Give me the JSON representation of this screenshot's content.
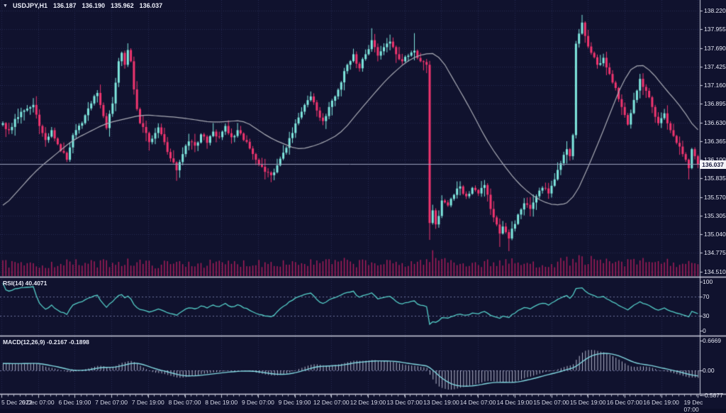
{
  "window": {
    "symbol_line": {
      "dropdown_glyph": "▼",
      "symbol_period": "USDJPY,H1",
      "open": "136.187",
      "high": "136.190",
      "low": "135.962",
      "close": "136.037"
    }
  },
  "price_axis": {
    "labels": [
      "138.220",
      "137.955",
      "137.690",
      "137.425",
      "137.160",
      "136.895",
      "136.630",
      "136.365",
      "136.100",
      "135.835",
      "135.570",
      "135.305",
      "135.040",
      "134.775",
      "134.510"
    ],
    "current_price": "136.037",
    "current_price_value": 136.037
  },
  "time_axis": {
    "labels": [
      "5 Dec 2022",
      "6 Dec 07:00",
      "6 Dec 19:00",
      "7 Dec 07:00",
      "7 Dec 19:00",
      "8 Dec 07:00",
      "8 Dec 19:00",
      "9 Dec 07:00",
      "9 Dec 19:00",
      "12 Dec 07:00",
      "12 Dec 19:00",
      "13 Dec 07:00",
      "13 Dec 19:00",
      "14 Dec 07:00",
      "14 Dec 19:00",
      "15 Dec 07:00",
      "15 Dec 19:00",
      "16 Dec 07:00",
      "16 Dec 19:00",
      "19 Dec 07:00"
    ]
  },
  "rsi_panel": {
    "label": "RSI(14) 40.4071",
    "axis_labels": [
      "100",
      "70",
      "30",
      "0"
    ],
    "axis_values": [
      100,
      70,
      30,
      0
    ],
    "level_lines": [
      70,
      30
    ]
  },
  "macd_panel": {
    "label": "MACD(12,26,9) -0.2167 -0.1898",
    "axis_labels": [
      "0.6669",
      "0.00",
      "-0.5877"
    ],
    "axis_values": [
      0.6669,
      0,
      -0.5877
    ]
  },
  "colors": {
    "background": "#10122e",
    "grid": "#272c52",
    "bull_candle": "#7fe8df",
    "bear_candle": "#f1356f",
    "volume": "#a81d5a",
    "ma_line": "#a8aab4",
    "rsi_line": "#55cfc9",
    "macd_signal": "#83d9e2",
    "macd_histogram": "#c9cbdf",
    "level_line": "#6f74a0",
    "axis_frame": "#cdd0e0",
    "price_line": "#9ba1bd"
  },
  "chart_data": {
    "type": "candlestick",
    "symbol": "USDJPY",
    "timeframe": "H1",
    "title": "USDJPY,H1",
    "ylim": [
      134.45,
      138.37
    ],
    "price_tick_step": 0.265,
    "candle_count": 229,
    "close_keyframes": [
      [
        0,
        136.62
      ],
      [
        2,
        136.52
      ],
      [
        4,
        136.68
      ],
      [
        7,
        136.8
      ],
      [
        10,
        136.88
      ],
      [
        12,
        136.58
      ],
      [
        14,
        136.38
      ],
      [
        16,
        136.52
      ],
      [
        18,
        136.32
      ],
      [
        21,
        136.1
      ],
      [
        23,
        136.45
      ],
      [
        26,
        136.62
      ],
      [
        29,
        136.9
      ],
      [
        31,
        137.05
      ],
      [
        33,
        136.72
      ],
      [
        34,
        136.55
      ],
      [
        36,
        136.9
      ],
      [
        38,
        137.5
      ],
      [
        39,
        137.62
      ],
      [
        40,
        137.45
      ],
      [
        41,
        137.66
      ],
      [
        42,
        137.5
      ],
      [
        43,
        137.1
      ],
      [
        44,
        136.82
      ],
      [
        45,
        136.62
      ],
      [
        47,
        136.48
      ],
      [
        48,
        136.35
      ],
      [
        50,
        136.48
      ],
      [
        51,
        136.56
      ],
      [
        53,
        136.35
      ],
      [
        55,
        136.12
      ],
      [
        57,
        135.95
      ],
      [
        59,
        136.18
      ],
      [
        61,
        136.36
      ],
      [
        63,
        136.3
      ],
      [
        65,
        136.46
      ],
      [
        67,
        136.34
      ],
      [
        69,
        136.5
      ],
      [
        71,
        136.42
      ],
      [
        73,
        136.58
      ],
      [
        75,
        136.42
      ],
      [
        77,
        136.52
      ],
      [
        79,
        136.38
      ],
      [
        81,
        136.26
      ],
      [
        83,
        136.1
      ],
      [
        85,
        136.0
      ],
      [
        88,
        135.88
      ],
      [
        90,
        136.02
      ],
      [
        92,
        136.2
      ],
      [
        95,
        136.48
      ],
      [
        97,
        136.7
      ],
      [
        99,
        136.88
      ],
      [
        101,
        137.0
      ],
      [
        103,
        136.8
      ],
      [
        105,
        136.65
      ],
      [
        107,
        136.85
      ],
      [
        109,
        137.0
      ],
      [
        111,
        137.2
      ],
      [
        113,
        137.45
      ],
      [
        115,
        137.6
      ],
      [
        117,
        137.4
      ],
      [
        119,
        137.6
      ],
      [
        121,
        137.8
      ],
      [
        123,
        137.58
      ],
      [
        125,
        137.7
      ],
      [
        127,
        137.78
      ],
      [
        129,
        137.6
      ],
      [
        131,
        137.5
      ],
      [
        133,
        137.58
      ],
      [
        135,
        137.65
      ],
      [
        137,
        137.5
      ],
      [
        139,
        137.45
      ],
      [
        140,
        135.2
      ],
      [
        141,
        135.38
      ],
      [
        142,
        135.18
      ],
      [
        143,
        135.3
      ],
      [
        144,
        135.52
      ],
      [
        146,
        135.45
      ],
      [
        148,
        135.6
      ],
      [
        150,
        135.72
      ],
      [
        152,
        135.58
      ],
      [
        154,
        135.7
      ],
      [
        156,
        135.62
      ],
      [
        158,
        135.74
      ],
      [
        160,
        135.4
      ],
      [
        161,
        135.28
      ],
      [
        163,
        135.05
      ],
      [
        164,
        135.15
      ],
      [
        166,
        134.98
      ],
      [
        167,
        135.12
      ],
      [
        169,
        135.32
      ],
      [
        171,
        135.48
      ],
      [
        173,
        135.4
      ],
      [
        175,
        135.58
      ],
      [
        177,
        135.7
      ],
      [
        179,
        135.62
      ],
      [
        181,
        135.82
      ],
      [
        183,
        136.05
      ],
      [
        185,
        136.25
      ],
      [
        186,
        136.15
      ],
      [
        187,
        136.45
      ],
      [
        188,
        137.75
      ],
      [
        190,
        138.05
      ],
      [
        191,
        137.86
      ],
      [
        193,
        137.62
      ],
      [
        195,
        137.45
      ],
      [
        197,
        137.55
      ],
      [
        199,
        137.32
      ],
      [
        201,
        137.12
      ],
      [
        203,
        136.85
      ],
      [
        205,
        136.6
      ],
      [
        207,
        136.95
      ],
      [
        209,
        137.25
      ],
      [
        211,
        137.08
      ],
      [
        213,
        136.85
      ],
      [
        215,
        136.62
      ],
      [
        217,
        136.76
      ],
      [
        219,
        136.52
      ],
      [
        221,
        136.34
      ],
      [
        223,
        136.18
      ],
      [
        224,
        136.1
      ],
      [
        225,
        135.98
      ],
      [
        226,
        136.25
      ],
      [
        227,
        136.15
      ],
      [
        228,
        136.04
      ]
    ],
    "wick_events": [
      [
        57,
        "low",
        135.8
      ],
      [
        88,
        "low",
        135.78
      ],
      [
        121,
        "high",
        137.97
      ],
      [
        135,
        "high",
        137.9
      ],
      [
        140,
        "low",
        134.96
      ],
      [
        163,
        "low",
        134.86
      ],
      [
        166,
        "low",
        134.8
      ],
      [
        190,
        "high",
        138.16
      ],
      [
        225,
        "low",
        135.82
      ]
    ],
    "pre_trend": [
      [
        -30,
        135.55
      ],
      [
        -15,
        136.1
      ],
      [
        0,
        136.62
      ]
    ],
    "ma_keyframes": [
      [
        0,
        135.42
      ],
      [
        11,
        135.95
      ],
      [
        23,
        136.38
      ],
      [
        34,
        136.62
      ],
      [
        46,
        136.74
      ],
      [
        58,
        136.7
      ],
      [
        69,
        136.63
      ],
      [
        79,
        136.66
      ],
      [
        88,
        136.4
      ],
      [
        97,
        136.24
      ],
      [
        104,
        136.32
      ],
      [
        111,
        136.48
      ],
      [
        118,
        136.85
      ],
      [
        126,
        137.25
      ],
      [
        133,
        137.52
      ],
      [
        139,
        137.62
      ],
      [
        143,
        137.6
      ],
      [
        147,
        137.3
      ],
      [
        153,
        136.85
      ],
      [
        159,
        136.35
      ],
      [
        165,
        135.98
      ],
      [
        170,
        135.72
      ],
      [
        176,
        135.52
      ],
      [
        182,
        135.44
      ],
      [
        187,
        135.52
      ],
      [
        190,
        135.8
      ],
      [
        195,
        136.3
      ],
      [
        200,
        136.85
      ],
      [
        204,
        137.28
      ],
      [
        208,
        137.48
      ],
      [
        212,
        137.4
      ],
      [
        217,
        137.12
      ],
      [
        222,
        136.88
      ],
      [
        226,
        136.62
      ],
      [
        228,
        136.48
      ]
    ],
    "volume_envelope": [
      [
        0,
        0.45
      ],
      [
        10,
        0.35
      ],
      [
        20,
        0.5
      ],
      [
        30,
        0.45
      ],
      [
        40,
        0.6
      ],
      [
        50,
        0.4
      ],
      [
        60,
        0.5
      ],
      [
        70,
        0.45
      ],
      [
        80,
        0.5
      ],
      [
        90,
        0.55
      ],
      [
        100,
        0.5
      ],
      [
        110,
        0.55
      ],
      [
        120,
        0.5
      ],
      [
        130,
        0.45
      ],
      [
        139,
        0.6
      ],
      [
        140,
        1
      ],
      [
        142,
        0.8
      ],
      [
        146,
        0.6
      ],
      [
        155,
        0.45
      ],
      [
        165,
        0.55
      ],
      [
        175,
        0.4
      ],
      [
        185,
        0.6
      ],
      [
        190,
        0.75
      ],
      [
        195,
        0.55
      ],
      [
        205,
        0.5
      ],
      [
        212,
        0.6
      ],
      [
        220,
        0.5
      ],
      [
        228,
        0.35
      ]
    ],
    "indicators": {
      "rsi_period": 14,
      "macd_fast": 12,
      "macd_slow": 26,
      "macd_signal": 9
    },
    "noise_seed": 7,
    "noise_amp": 0.035
  }
}
